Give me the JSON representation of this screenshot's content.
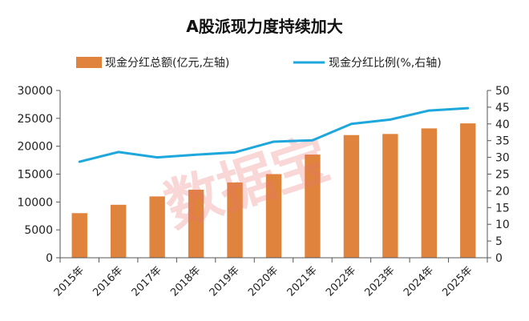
{
  "chart_data": {
    "type": "bar",
    "title": "A股派现力度持续加大",
    "categories": [
      "2015年",
      "2016年",
      "2017年",
      "2018年",
      "2019年",
      "2020年",
      "2021年",
      "2022年",
      "2023年",
      "2024年",
      "2025年"
    ],
    "series": [
      {
        "name": "现金分红总额(亿元,左轴)",
        "type": "bar",
        "axis": "left",
        "color": "#E0843D",
        "values": [
          8000,
          9500,
          11000,
          12200,
          13500,
          15000,
          18500,
          22000,
          22200,
          23200,
          24100
        ]
      },
      {
        "name": "现金分红比例(%,右轴)",
        "type": "line",
        "axis": "right",
        "color": "#1EA7DC",
        "values": [
          28.7,
          31.6,
          30.0,
          30.8,
          31.5,
          34.7,
          35.1,
          40.0,
          41.3,
          44.0,
          44.7
        ]
      }
    ],
    "y_left": {
      "min": 0,
      "max": 30000,
      "ticks": [
        "0",
        "5000",
        "10000",
        "15000",
        "20000",
        "25000",
        "30000"
      ]
    },
    "y_right": {
      "min": 0,
      "max": 50,
      "ticks": [
        "0",
        "5",
        "10",
        "15",
        "20",
        "25",
        "30",
        "35",
        "40",
        "45",
        "50"
      ]
    },
    "legend_position": "top",
    "grid": false
  },
  "watermark": "数据宝"
}
